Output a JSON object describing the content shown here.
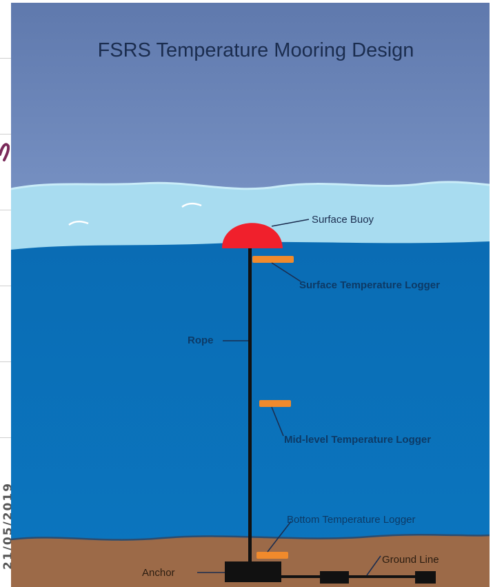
{
  "title": "FSRS Temperature Mooring Design",
  "labels": {
    "surface_buoy": "Surface Buoy",
    "surface_logger": "Surface Temperature Logger",
    "rope": "Rope",
    "mid_logger": "Mid-level Temperature Logger",
    "bottom_logger": "Bottom Temperature Logger",
    "ground_line": "Ground Line",
    "anchor": "Anchor"
  },
  "side_margin": {
    "date_text": "21/05/2019"
  },
  "colors": {
    "sky": "#6f87b8",
    "surface_water": "#a8dcf0",
    "deep_water": "#0a6cb4",
    "seabed": "#9c6a48",
    "buoy": "#f0202c",
    "logger": "#f08a2c",
    "rope": "#111111",
    "label_text": "#0d3a66"
  }
}
